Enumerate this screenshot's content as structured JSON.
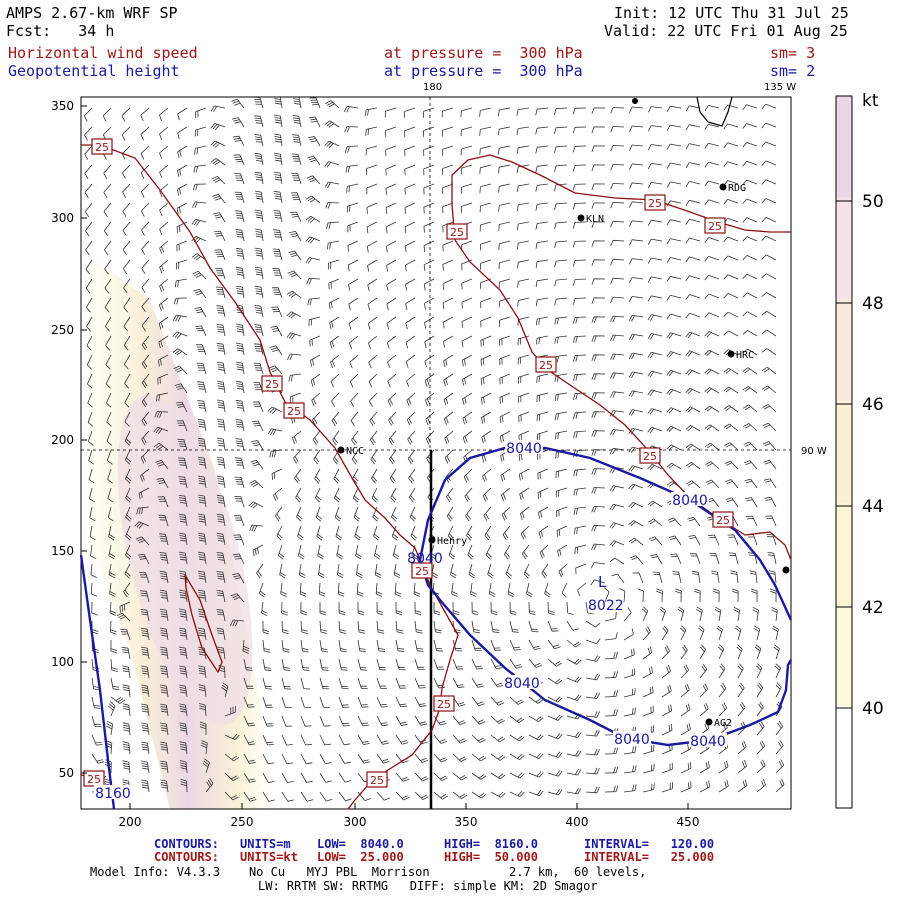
{
  "header": {
    "model": "AMPS 2.67-km WRF SP",
    "init": "Init: 12 UTC Thu 31 Jul 25",
    "fcst": "Fcst:   34 h",
    "valid": "Valid: 22 UTC Fri 01 Aug 25",
    "field1_name": "Horizontal wind speed",
    "field1_level": "at pressure =  300 hPa",
    "field1_sm": "sm= 3",
    "field2_name": "Geopotential height",
    "field2_level": "at pressure =  300 hPa",
    "field2_sm": "sm= 2"
  },
  "map": {
    "longitude_top_label": "180",
    "longitude_right_label": "135 W",
    "latitude_label": "90 W",
    "x_ticks": [
      "200",
      "250",
      "300",
      "350",
      "400",
      "450"
    ],
    "y_ticks": [
      "350",
      "300",
      "250",
      "200",
      "150",
      "100",
      "50"
    ],
    "stations": [
      "RDG",
      "KLN",
      "HRC",
      "NCC",
      "Henry",
      "AG2"
    ],
    "low_marker": "L",
    "low_value": "8022",
    "height_labels": [
      "8040",
      "8040",
      "8040",
      "8040",
      "8040",
      "8160"
    ],
    "wind_labels": [
      "25",
      "25",
      "25",
      "25",
      "25",
      "25",
      "25",
      "25",
      "25",
      "25",
      "25",
      "25",
      "25"
    ],
    "colors": {
      "height_contour": "#1a1aa0",
      "wind_contour": "#8b1010"
    }
  },
  "colorbar": {
    "unit": "kt",
    "labels": [
      "50",
      "48",
      "46",
      "44",
      "42",
      "40"
    ],
    "colors": [
      "#ead6e6",
      "#f5e3e8",
      "#f8eadd",
      "#faf0d6",
      "#fbf5d3",
      "#fcf9dd",
      "#ffffff"
    ]
  },
  "footer": {
    "line1": {
      "contours": "CONTOURS:",
      "units": "UNITS=m",
      "low": "LOW=  8040.0",
      "high": "HIGH=  8160.0",
      "interval": "INTERVAL=   120.00"
    },
    "line2": {
      "contours": "CONTOURS:",
      "units": "UNITS=kt",
      "low": "LOW=  25.000",
      "high": "HIGH=  50.000",
      "interval": "INTERVAL=   25.000"
    },
    "model_info": "Model Info: V4.3.3    No Cu   MYJ PBL  Morrison           2.7 km,  60 levels,",
    "model_info2": "LW: RRTM SW: RRTMG   DIFF: simple KM: 2D Smagor"
  }
}
